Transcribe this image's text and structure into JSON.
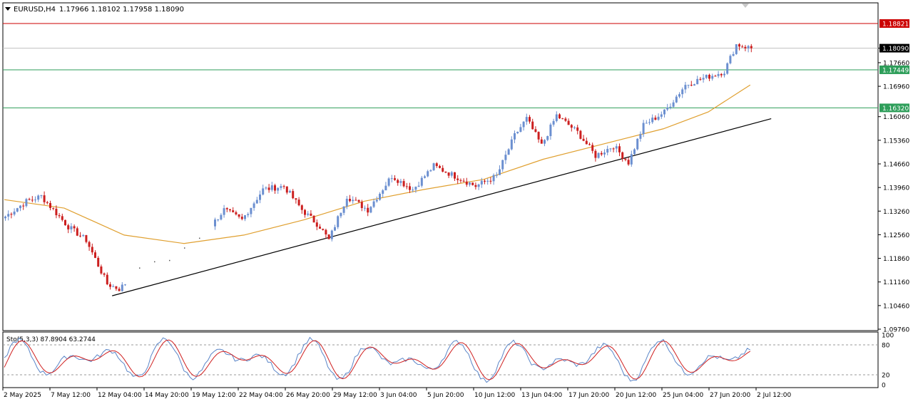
{
  "header": {
    "symbol": "EURUSD,H4",
    "ohlc": "1.17966 1.18102 1.17958 1.18090"
  },
  "price_axis": {
    "ticks": [
      "1.18090",
      "1.17660",
      "1.16960",
      "1.16060",
      "1.15360",
      "1.14660",
      "1.13960",
      "1.13260",
      "1.12560",
      "1.11860",
      "1.11160",
      "1.10460",
      "1.09760"
    ],
    "tick_values": [
      1.1809,
      1.1766,
      1.1696,
      1.1606,
      1.1536,
      1.1466,
      1.1396,
      1.1326,
      1.1256,
      1.1186,
      1.1116,
      1.1046,
      1.0976
    ],
    "ylim": [
      1.0976,
      1.193
    ]
  },
  "levels": [
    {
      "label": "1.18821",
      "value": 1.18821,
      "color": "#cc0000"
    },
    {
      "label": "1.18090",
      "value": 1.1809,
      "color": "#000000"
    },
    {
      "label": "1.17449",
      "value": 1.17449,
      "color": "#2e9e5a"
    },
    {
      "label": "1.16320",
      "value": 1.1632,
      "color": "#2e9e5a"
    }
  ],
  "time_axis": [
    "2 May 2025",
    "7 May 12:00",
    "12 May 04:00",
    "14 May 20:00",
    "19 May 12:00",
    "22 May 04:00",
    "26 May 20:00",
    "29 May 12:00",
    "3 Jun 04:00",
    "5 Jun 20:00",
    "10 Jun 12:00",
    "13 Jun 04:00",
    "17 Jun 20:00",
    "20 Jun 12:00",
    "25 Jun 04:00",
    "27 Jun 20:00",
    "2 Jul 12:00"
  ],
  "stochastic": {
    "label": "Sto(5,3,3) 87.8904 63.2744",
    "levels": [
      "100",
      "80",
      "20",
      "0"
    ],
    "level_values": [
      100,
      80,
      20,
      0
    ]
  },
  "chart_data": {
    "type": "candlestick",
    "symbol": "EURUSD",
    "timeframe": "H4",
    "ylim": [
      1.0976,
      1.193
    ],
    "bar_count": 250,
    "anchors": [
      {
        "bar": 0,
        "price": 1.131
      },
      {
        "bar": 7,
        "price": 1.1355
      },
      {
        "bar": 12,
        "price": 1.137
      },
      {
        "bar": 16,
        "price": 1.133
      },
      {
        "bar": 21,
        "price": 1.128
      },
      {
        "bar": 27,
        "price": 1.124
      },
      {
        "bar": 34,
        "price": 1.111
      },
      {
        "bar": 38,
        "price": 1.1095
      },
      {
        "bar": 46,
        "price": 1.116
      },
      {
        "bar": 57,
        "price": 1.1195
      },
      {
        "bar": 64,
        "price": 1.123
      },
      {
        "bar": 73,
        "price": 1.133
      },
      {
        "bar": 79,
        "price": 1.13
      },
      {
        "bar": 86,
        "price": 1.139
      },
      {
        "bar": 93,
        "price": 1.14
      },
      {
        "bar": 99,
        "price": 1.133
      },
      {
        "bar": 105,
        "price": 1.128
      },
      {
        "bar": 108,
        "price": 1.124
      },
      {
        "bar": 114,
        "price": 1.137
      },
      {
        "bar": 121,
        "price": 1.133
      },
      {
        "bar": 129,
        "price": 1.143
      },
      {
        "bar": 136,
        "price": 1.139
      },
      {
        "bar": 143,
        "price": 1.146
      },
      {
        "bar": 150,
        "price": 1.143
      },
      {
        "bar": 157,
        "price": 1.14
      },
      {
        "bar": 164,
        "price": 1.143
      },
      {
        "bar": 170,
        "price": 1.155
      },
      {
        "bar": 174,
        "price": 1.16
      },
      {
        "bar": 179,
        "price": 1.152
      },
      {
        "bar": 184,
        "price": 1.161
      },
      {
        "bar": 191,
        "price": 1.156
      },
      {
        "bar": 197,
        "price": 1.149
      },
      {
        "bar": 203,
        "price": 1.152
      },
      {
        "bar": 208,
        "price": 1.147
      },
      {
        "bar": 213,
        "price": 1.158
      },
      {
        "bar": 220,
        "price": 1.162
      },
      {
        "bar": 227,
        "price": 1.17
      },
      {
        "bar": 233,
        "price": 1.172
      },
      {
        "bar": 240,
        "price": 1.174
      },
      {
        "bar": 244,
        "price": 1.182
      },
      {
        "bar": 249,
        "price": 1.1809
      }
    ],
    "moving_average": [
      {
        "bar": 0,
        "price": 1.136
      },
      {
        "bar": 20,
        "price": 1.1335
      },
      {
        "bar": 40,
        "price": 1.1255
      },
      {
        "bar": 60,
        "price": 1.123
      },
      {
        "bar": 80,
        "price": 1.1255
      },
      {
        "bar": 100,
        "price": 1.13
      },
      {
        "bar": 120,
        "price": 1.1355
      },
      {
        "bar": 140,
        "price": 1.139
      },
      {
        "bar": 160,
        "price": 1.142
      },
      {
        "bar": 180,
        "price": 1.148
      },
      {
        "bar": 200,
        "price": 1.1525
      },
      {
        "bar": 220,
        "price": 1.157
      },
      {
        "bar": 235,
        "price": 1.162
      },
      {
        "bar": 249,
        "price": 1.17
      }
    ],
    "trendline": [
      {
        "bar": 36,
        "price": 1.1075
      },
      {
        "bar": 256,
        "price": 1.16
      }
    ]
  }
}
